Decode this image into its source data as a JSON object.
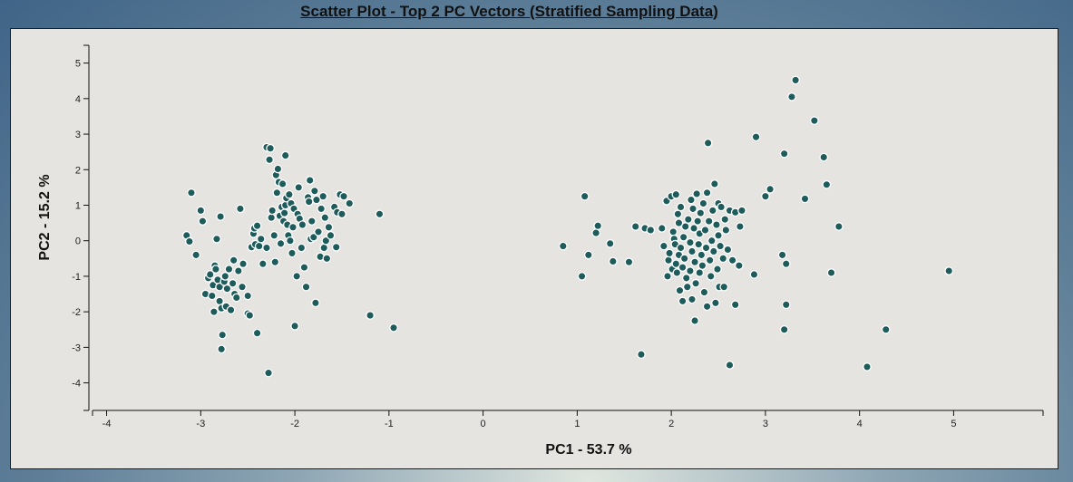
{
  "chart_data": {
    "type": "scatter",
    "title": "Scatter Plot - Top 2 PC Vectors (Stratified Sampling Data)",
    "xlabel": "PC1 - 53.7 %",
    "ylabel": "PC2 - 15.2 %",
    "xlim": [
      -4.15,
      5.95
    ],
    "ylim": [
      -4.75,
      5.5
    ],
    "xticks": [
      -4,
      -3,
      -2,
      -1,
      0,
      1,
      2,
      3,
      4,
      5
    ],
    "yticks": [
      5,
      4,
      3,
      2,
      1,
      0,
      -1,
      -2,
      -3,
      -4
    ],
    "grid": false,
    "point_color": "#1e5c5c",
    "points": [
      [
        -3.15,
        0.15
      ],
      [
        -3.12,
        -0.02
      ],
      [
        -3.1,
        1.35
      ],
      [
        -3.05,
        -0.4
      ],
      [
        -3.0,
        0.85
      ],
      [
        -2.98,
        0.55
      ],
      [
        -2.95,
        -1.5
      ],
      [
        -2.92,
        -1.05
      ],
      [
        -2.9,
        -0.95
      ],
      [
        -2.88,
        -1.55
      ],
      [
        -2.87,
        -1.25
      ],
      [
        -2.86,
        -2.0
      ],
      [
        -2.85,
        -0.7
      ],
      [
        -2.84,
        -0.8
      ],
      [
        -2.83,
        0.05
      ],
      [
        -2.82,
        -1.1
      ],
      [
        -2.8,
        -1.3
      ],
      [
        -2.8,
        -1.7
      ],
      [
        -2.79,
        0.68
      ],
      [
        -2.78,
        -1.9
      ],
      [
        -2.77,
        -2.65
      ],
      [
        -2.78,
        -3.05
      ],
      [
        -2.75,
        -1.15
      ],
      [
        -2.74,
        -1.0
      ],
      [
        -2.73,
        -1.85
      ],
      [
        -2.72,
        -1.35
      ],
      [
        -2.7,
        -0.8
      ],
      [
        -2.68,
        -1.95
      ],
      [
        -2.66,
        -1.2
      ],
      [
        -2.65,
        -0.55
      ],
      [
        -2.64,
        -1.5
      ],
      [
        -2.62,
        -1.6
      ],
      [
        -2.6,
        -0.85
      ],
      [
        -2.58,
        0.9
      ],
      [
        -2.56,
        -1.3
      ],
      [
        -2.55,
        -0.65
      ],
      [
        -2.5,
        -1.55
      ],
      [
        -2.5,
        -2.05
      ],
      [
        -2.48,
        -2.1
      ],
      [
        -2.46,
        -0.18
      ],
      [
        -2.44,
        0.2
      ],
      [
        -2.43,
        0.35
      ],
      [
        -2.42,
        -0.1
      ],
      [
        -2.4,
        0.42
      ],
      [
        -2.4,
        -2.6
      ],
      [
        -2.38,
        -0.15
      ],
      [
        -2.36,
        0.05
      ],
      [
        -2.34,
        -0.65
      ],
      [
        -2.3,
        -0.2
      ],
      [
        -2.28,
        -3.72
      ],
      [
        -2.3,
        2.63
      ],
      [
        -2.27,
        2.28
      ],
      [
        -2.26,
        2.6
      ],
      [
        -2.25,
        0.65
      ],
      [
        -2.24,
        0.85
      ],
      [
        -2.22,
        0.15
      ],
      [
        -2.21,
        -0.6
      ],
      [
        -2.2,
        1.85
      ],
      [
        -2.19,
        1.35
      ],
      [
        -2.18,
        2.02
      ],
      [
        -2.17,
        1.65
      ],
      [
        -2.16,
        0.7
      ],
      [
        -2.15,
        -0.08
      ],
      [
        -2.14,
        0.95
      ],
      [
        -2.13,
        1.6
      ],
      [
        -2.12,
        0.55
      ],
      [
        -2.11,
        0.78
      ],
      [
        -2.1,
        1.0
      ],
      [
        -2.1,
        2.4
      ],
      [
        -2.09,
        1.2
      ],
      [
        -2.08,
        0.45
      ],
      [
        -2.07,
        0.15
      ],
      [
        -2.06,
        1.3
      ],
      [
        -2.05,
        0.0
      ],
      [
        -2.04,
        1.05
      ],
      [
        -2.03,
        -0.35
      ],
      [
        -2.02,
        0.38
      ],
      [
        -2.01,
        0.9
      ],
      [
        -2.0,
        -2.4
      ],
      [
        -1.98,
        -1.0
      ],
      [
        -1.97,
        0.75
      ],
      [
        -1.96,
        1.5
      ],
      [
        -1.95,
        0.62
      ],
      [
        -1.93,
        -0.2
      ],
      [
        -1.92,
        0.45
      ],
      [
        -1.9,
        -0.75
      ],
      [
        -1.88,
        -1.3
      ],
      [
        -1.86,
        1.22
      ],
      [
        -1.85,
        1.1
      ],
      [
        -1.84,
        1.7
      ],
      [
        -1.83,
        0.05
      ],
      [
        -1.82,
        0.55
      ],
      [
        -1.8,
        0.1
      ],
      [
        -1.79,
        1.4
      ],
      [
        -1.78,
        -1.75
      ],
      [
        -1.77,
        1.15
      ],
      [
        -1.75,
        0.25
      ],
      [
        -1.73,
        -0.45
      ],
      [
        -1.72,
        0.9
      ],
      [
        -1.7,
        1.25
      ],
      [
        -1.69,
        -0.2
      ],
      [
        -1.68,
        0.65
      ],
      [
        -1.67,
        0.0
      ],
      [
        -1.66,
        -0.5
      ],
      [
        -1.64,
        0.38
      ],
      [
        -1.62,
        0.15
      ],
      [
        -1.58,
        0.95
      ],
      [
        -1.56,
        -0.18
      ],
      [
        -1.55,
        0.8
      ],
      [
        -1.52,
        1.3
      ],
      [
        -1.5,
        0.75
      ],
      [
        -1.48,
        1.25
      ],
      [
        -1.42,
        1.05
      ],
      [
        -1.2,
        -2.1
      ],
      [
        -1.1,
        0.75
      ],
      [
        -0.95,
        -2.45
      ],
      [
        0.85,
        -0.15
      ],
      [
        1.05,
        -1.0
      ],
      [
        1.08,
        1.25
      ],
      [
        1.12,
        -0.4
      ],
      [
        1.2,
        0.22
      ],
      [
        1.22,
        0.42
      ],
      [
        1.35,
        -0.08
      ],
      [
        1.38,
        -0.58
      ],
      [
        1.55,
        -0.6
      ],
      [
        1.62,
        0.4
      ],
      [
        1.68,
        -3.2
      ],
      [
        1.72,
        0.35
      ],
      [
        1.78,
        0.3
      ],
      [
        1.9,
        0.35
      ],
      [
        1.92,
        -0.15
      ],
      [
        1.95,
        1.12
      ],
      [
        1.96,
        -1.0
      ],
      [
        1.97,
        -0.55
      ],
      [
        1.98,
        -0.35
      ],
      [
        2.0,
        1.25
      ],
      [
        2.01,
        -0.8
      ],
      [
        2.02,
        0.25
      ],
      [
        2.03,
        0.05
      ],
      [
        2.04,
        -0.1
      ],
      [
        2.05,
        1.3
      ],
      [
        2.05,
        -0.65
      ],
      [
        2.06,
        -0.9
      ],
      [
        2.07,
        0.75
      ],
      [
        2.08,
        0.5
      ],
      [
        2.08,
        -0.4
      ],
      [
        2.09,
        -1.4
      ],
      [
        2.1,
        0.95
      ],
      [
        2.1,
        -0.2
      ],
      [
        2.12,
        -0.75
      ],
      [
        2.12,
        -1.7
      ],
      [
        2.13,
        0.1
      ],
      [
        2.14,
        -0.5
      ],
      [
        2.15,
        0.4
      ],
      [
        2.16,
        -1.05
      ],
      [
        2.17,
        -1.3
      ],
      [
        2.18,
        0.6
      ],
      [
        2.2,
        -0.05
      ],
      [
        2.2,
        -0.85
      ],
      [
        2.21,
        1.15
      ],
      [
        2.22,
        -1.65
      ],
      [
        2.22,
        -0.3
      ],
      [
        2.23,
        0.9
      ],
      [
        2.24,
        0.35
      ],
      [
        2.25,
        -0.6
      ],
      [
        2.25,
        -2.25
      ],
      [
        2.26,
        -1.2
      ],
      [
        2.27,
        1.32
      ],
      [
        2.28,
        0.55
      ],
      [
        2.29,
        -0.1
      ],
      [
        2.3,
        -0.9
      ],
      [
        2.3,
        0.2
      ],
      [
        2.31,
        0.78
      ],
      [
        2.32,
        -0.4
      ],
      [
        2.33,
        -0.7
      ],
      [
        2.34,
        1.05
      ],
      [
        2.35,
        -1.45
      ],
      [
        2.36,
        0.3
      ],
      [
        2.37,
        -0.2
      ],
      [
        2.38,
        1.35
      ],
      [
        2.38,
        -1.85
      ],
      [
        2.39,
        2.75
      ],
      [
        2.4,
        0.55
      ],
      [
        2.41,
        -0.55
      ],
      [
        2.42,
        -1.0
      ],
      [
        2.43,
        0.0
      ],
      [
        2.44,
        0.85
      ],
      [
        2.45,
        -0.3
      ],
      [
        2.46,
        1.6
      ],
      [
        2.47,
        -1.75
      ],
      [
        2.48,
        0.45
      ],
      [
        2.49,
        -0.8
      ],
      [
        2.5,
        0.15
      ],
      [
        2.5,
        1.05
      ],
      [
        2.51,
        -1.3
      ],
      [
        2.52,
        -0.15
      ],
      [
        2.53,
        0.95
      ],
      [
        2.55,
        -0.5
      ],
      [
        2.56,
        -1.3
      ],
      [
        2.57,
        0.6
      ],
      [
        2.58,
        0.3
      ],
      [
        2.6,
        -0.25
      ],
      [
        2.62,
        0.85
      ],
      [
        2.62,
        -3.5
      ],
      [
        2.65,
        -0.55
      ],
      [
        2.68,
        0.8
      ],
      [
        2.68,
        -1.8
      ],
      [
        2.72,
        -0.7
      ],
      [
        2.73,
        0.4
      ],
      [
        2.75,
        0.85
      ],
      [
        2.88,
        -0.95
      ],
      [
        2.9,
        2.92
      ],
      [
        3.0,
        1.25
      ],
      [
        3.05,
        1.45
      ],
      [
        3.18,
        -0.4
      ],
      [
        3.2,
        2.45
      ],
      [
        3.2,
        -2.5
      ],
      [
        3.22,
        -0.65
      ],
      [
        3.22,
        -1.8
      ],
      [
        3.28,
        4.05
      ],
      [
        3.32,
        4.52
      ],
      [
        3.42,
        1.18
      ],
      [
        3.52,
        3.38
      ],
      [
        3.62,
        2.35
      ],
      [
        3.65,
        1.58
      ],
      [
        3.7,
        -0.9
      ],
      [
        3.78,
        0.4
      ],
      [
        4.08,
        -3.55
      ],
      [
        4.28,
        -2.5
      ],
      [
        4.95,
        -0.85
      ]
    ]
  }
}
